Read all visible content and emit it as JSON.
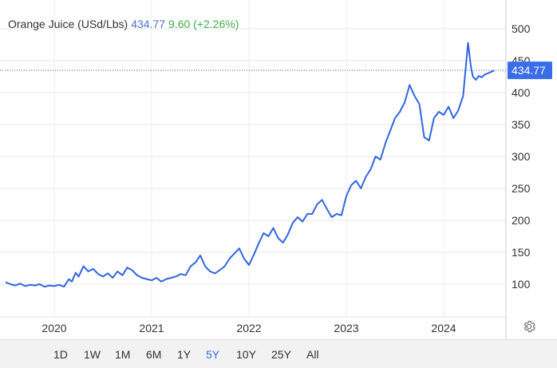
{
  "legend": {
    "name": "Orange Juice (USd/Lbs)",
    "price": "434.77",
    "change": "9.60 (+2.26%)"
  },
  "last_price_label": "434.77",
  "range_buttons": [
    "1D",
    "1W",
    "1M",
    "6M",
    "1Y",
    "5Y",
    "10Y",
    "25Y",
    "All"
  ],
  "active_range": "5Y",
  "icons": {
    "settings": "gear-icon"
  },
  "colors": {
    "line": "#3165e0",
    "badge": "#3a6ee8",
    "price": "#4a6fd8",
    "change": "#3fae49"
  },
  "chart_data": {
    "type": "line",
    "title": "",
    "xlabel": "",
    "ylabel": "",
    "x_ticks": [
      "2020",
      "2021",
      "2022",
      "2023",
      "2024"
    ],
    "y_ticks": [
      100,
      150,
      200,
      250,
      300,
      350,
      400,
      450,
      500
    ],
    "ylim": [
      47,
      532
    ],
    "xlim": [
      2019.5,
      2024.55
    ],
    "grid": true,
    "last_value": 434.77,
    "series": [
      {
        "x": [
          2019.5,
          2019.55,
          2019.6,
          2019.65,
          2019.7,
          2019.75,
          2019.8,
          2019.85,
          2019.9,
          2019.95,
          2020.0,
          2020.05,
          2020.1,
          2020.15,
          2020.18,
          2020.22,
          2020.25,
          2020.3,
          2020.35,
          2020.4,
          2020.45,
          2020.5,
          2020.55,
          2020.6,
          2020.65,
          2020.7,
          2020.75,
          2020.8,
          2020.85,
          2020.9,
          2020.95,
          2021.0,
          2021.05,
          2021.1,
          2021.15,
          2021.2,
          2021.25,
          2021.3,
          2021.35,
          2021.4,
          2021.45,
          2021.5,
          2021.55,
          2021.6,
          2021.65,
          2021.7,
          2021.75,
          2021.8,
          2021.85,
          2021.9,
          2021.95,
          2022.0,
          2022.05,
          2022.1,
          2022.15,
          2022.2,
          2022.25,
          2022.3,
          2022.35,
          2022.4,
          2022.45,
          2022.5,
          2022.55,
          2022.6,
          2022.65,
          2022.7,
          2022.75,
          2022.8,
          2022.85,
          2022.9,
          2022.95,
          2023.0,
          2023.05,
          2023.1,
          2023.15,
          2023.2,
          2023.25,
          2023.3,
          2023.35,
          2023.4,
          2023.45,
          2023.5,
          2023.55,
          2023.6,
          2023.65,
          2023.7,
          2023.75,
          2023.8,
          2023.85,
          2023.9,
          2023.95,
          2024.0,
          2024.05,
          2024.1,
          2024.15,
          2024.2,
          2024.25,
          2024.28,
          2024.3,
          2024.33,
          2024.36,
          2024.39,
          2024.42,
          2024.45,
          2024.48,
          2024.52
        ],
        "values": [
          103,
          100,
          98,
          101,
          97,
          99,
          98,
          100,
          96,
          98,
          97,
          99,
          96,
          108,
          104,
          118,
          112,
          128,
          120,
          124,
          116,
          112,
          117,
          110,
          120,
          114,
          126,
          122,
          114,
          110,
          108,
          106,
          110,
          104,
          108,
          110,
          112,
          116,
          114,
          128,
          134,
          145,
          128,
          120,
          117,
          122,
          128,
          140,
          148,
          156,
          140,
          130,
          146,
          164,
          180,
          175,
          188,
          172,
          165,
          178,
          196,
          205,
          198,
          210,
          210,
          225,
          232,
          218,
          205,
          210,
          208,
          238,
          255,
          262,
          250,
          268,
          280,
          300,
          295,
          320,
          340,
          360,
          370,
          385,
          412,
          395,
          382,
          330,
          325,
          360,
          370,
          365,
          378,
          360,
          372,
          395,
          478,
          440,
          425,
          420,
          426,
          424,
          428,
          430,
          432,
          434.77
        ]
      }
    ]
  }
}
